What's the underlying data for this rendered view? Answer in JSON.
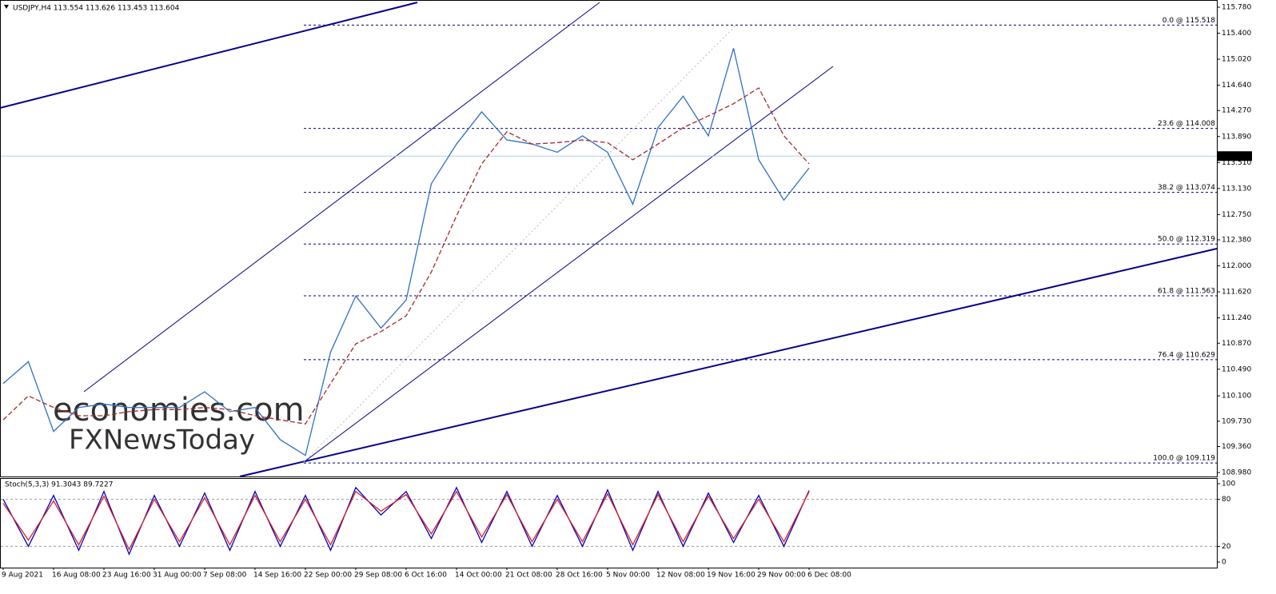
{
  "chart_data": [
    {
      "type": "line",
      "title": "USDJPY,H4  113.554 113.626 113.453 113.604",
      "watermark": [
        "economies.com",
        "FXNewsToday"
      ],
      "categories": [
        "9 Aug 2021",
        null,
        "16 Aug 08:00",
        null,
        "23 Aug 16:00",
        null,
        "31 Aug 00:00",
        null,
        "7 Sep 08:00",
        null,
        "14 Sep 16:00",
        null,
        "22 Sep 00:00",
        null,
        "29 Sep 08:00",
        null,
        "6 Oct 16:00",
        null,
        "14 Oct 00:00",
        null,
        "21 Oct 08:00",
        null,
        "28 Oct 16:00",
        null,
        "5 Nov 00:00",
        null,
        "12 Nov 08:00",
        null,
        "19 Nov 16:00",
        null,
        "29 Nov 00:00",
        null,
        "6 Dec 08:00"
      ],
      "series": [
        {
          "color": "#2f6fc9",
          "values": [
            110.28,
            110.6,
            109.58,
            109.93,
            109.98,
            109.93,
            109.93,
            109.93,
            110.16,
            109.87,
            109.93,
            109.46,
            109.23,
            110.74,
            111.56,
            111.09,
            111.5,
            113.2,
            113.78,
            114.25,
            113.84,
            113.78,
            113.66,
            113.9,
            113.66,
            112.9,
            114.02,
            114.48,
            113.9,
            115.18,
            113.55,
            112.96,
            113.43
          ]
        },
        {
          "color": "#a52a2a",
          "values": [
            109.75,
            110.1,
            109.93,
            109.81,
            109.81,
            109.87,
            109.9,
            109.9,
            109.93,
            109.9,
            109.81,
            109.75,
            109.69,
            110.28,
            110.86,
            111.04,
            111.27,
            111.91,
            112.73,
            113.49,
            113.96,
            113.78,
            113.8,
            113.84,
            113.8,
            113.55,
            113.78,
            114.02,
            114.19,
            114.37,
            114.6,
            113.9,
            113.49
          ]
        }
      ],
      "ylim": [
        108.922,
        115.885
      ],
      "yticks": [
        {
          "value": 115.78,
          "label": "115.780"
        },
        {
          "value": 115.4,
          "label": "115.400"
        },
        {
          "value": 115.02,
          "label": "115.020"
        },
        {
          "value": 114.64,
          "label": "114.640"
        },
        {
          "value": 114.27,
          "label": "114.270"
        },
        {
          "value": 113.89,
          "label": "113.890"
        },
        {
          "value": 113.51,
          "label": "113.510"
        },
        {
          "value": 113.13,
          "label": "113.130"
        },
        {
          "value": 112.75,
          "label": "112.750"
        },
        {
          "value": 112.38,
          "label": "112.380"
        },
        {
          "value": 112,
          "label": "112.000"
        },
        {
          "value": 111.62,
          "label": "111.620"
        },
        {
          "value": 111.24,
          "label": "111.240"
        },
        {
          "value": 110.87,
          "label": "110.870"
        },
        {
          "value": 110.49,
          "label": "110.490"
        },
        {
          "value": 110.1,
          "label": "110.100"
        },
        {
          "value": 109.73,
          "label": "109.730"
        },
        {
          "value": 109.36,
          "label": "109.360"
        },
        {
          "value": 108.98,
          "label": "108.980"
        }
      ],
      "last_price": 113.604,
      "fib_levels": [
        {
          "label": "0.0 @ 115.518",
          "value": 115.518
        },
        {
          "label": "23.6 @ 114.008",
          "value": 114.008
        },
        {
          "label": "38.2 @ 113.074",
          "value": 113.074
        },
        {
          "label": "50.0 @ 112.319",
          "value": 112.319
        },
        {
          "label": "61.8 @ 111.563",
          "value": 111.563
        },
        {
          "label": "76.4 @ 110.629",
          "value": 110.629
        },
        {
          "label": "100.0 @ 109.119",
          "value": 109.119
        }
      ]
    },
    {
      "type": "line",
      "title": "Stoch(5,3,3) 91.3043 89.7227",
      "series": [
        {
          "color": "#0000c0",
          "values": [
            80,
            20,
            85,
            15,
            90,
            10,
            85,
            20,
            88,
            15,
            90,
            20,
            85,
            15,
            95,
            60,
            90,
            30,
            95,
            25,
            90,
            20,
            85,
            20,
            92,
            15,
            90,
            20,
            88,
            25,
            85,
            20,
            91.3043
          ]
        },
        {
          "color": "#e02020",
          "values": [
            75,
            28,
            78,
            22,
            84,
            16,
            80,
            26,
            82,
            22,
            85,
            26,
            80,
            22,
            90,
            65,
            86,
            36,
            90,
            32,
            86,
            26,
            80,
            26,
            87,
            22,
            86,
            26,
            84,
            30,
            80,
            26,
            89.7227
          ]
        }
      ],
      "ylim": [
        -7.1,
        107.1
      ],
      "yticks": [
        100,
        80,
        20,
        0
      ]
    }
  ]
}
